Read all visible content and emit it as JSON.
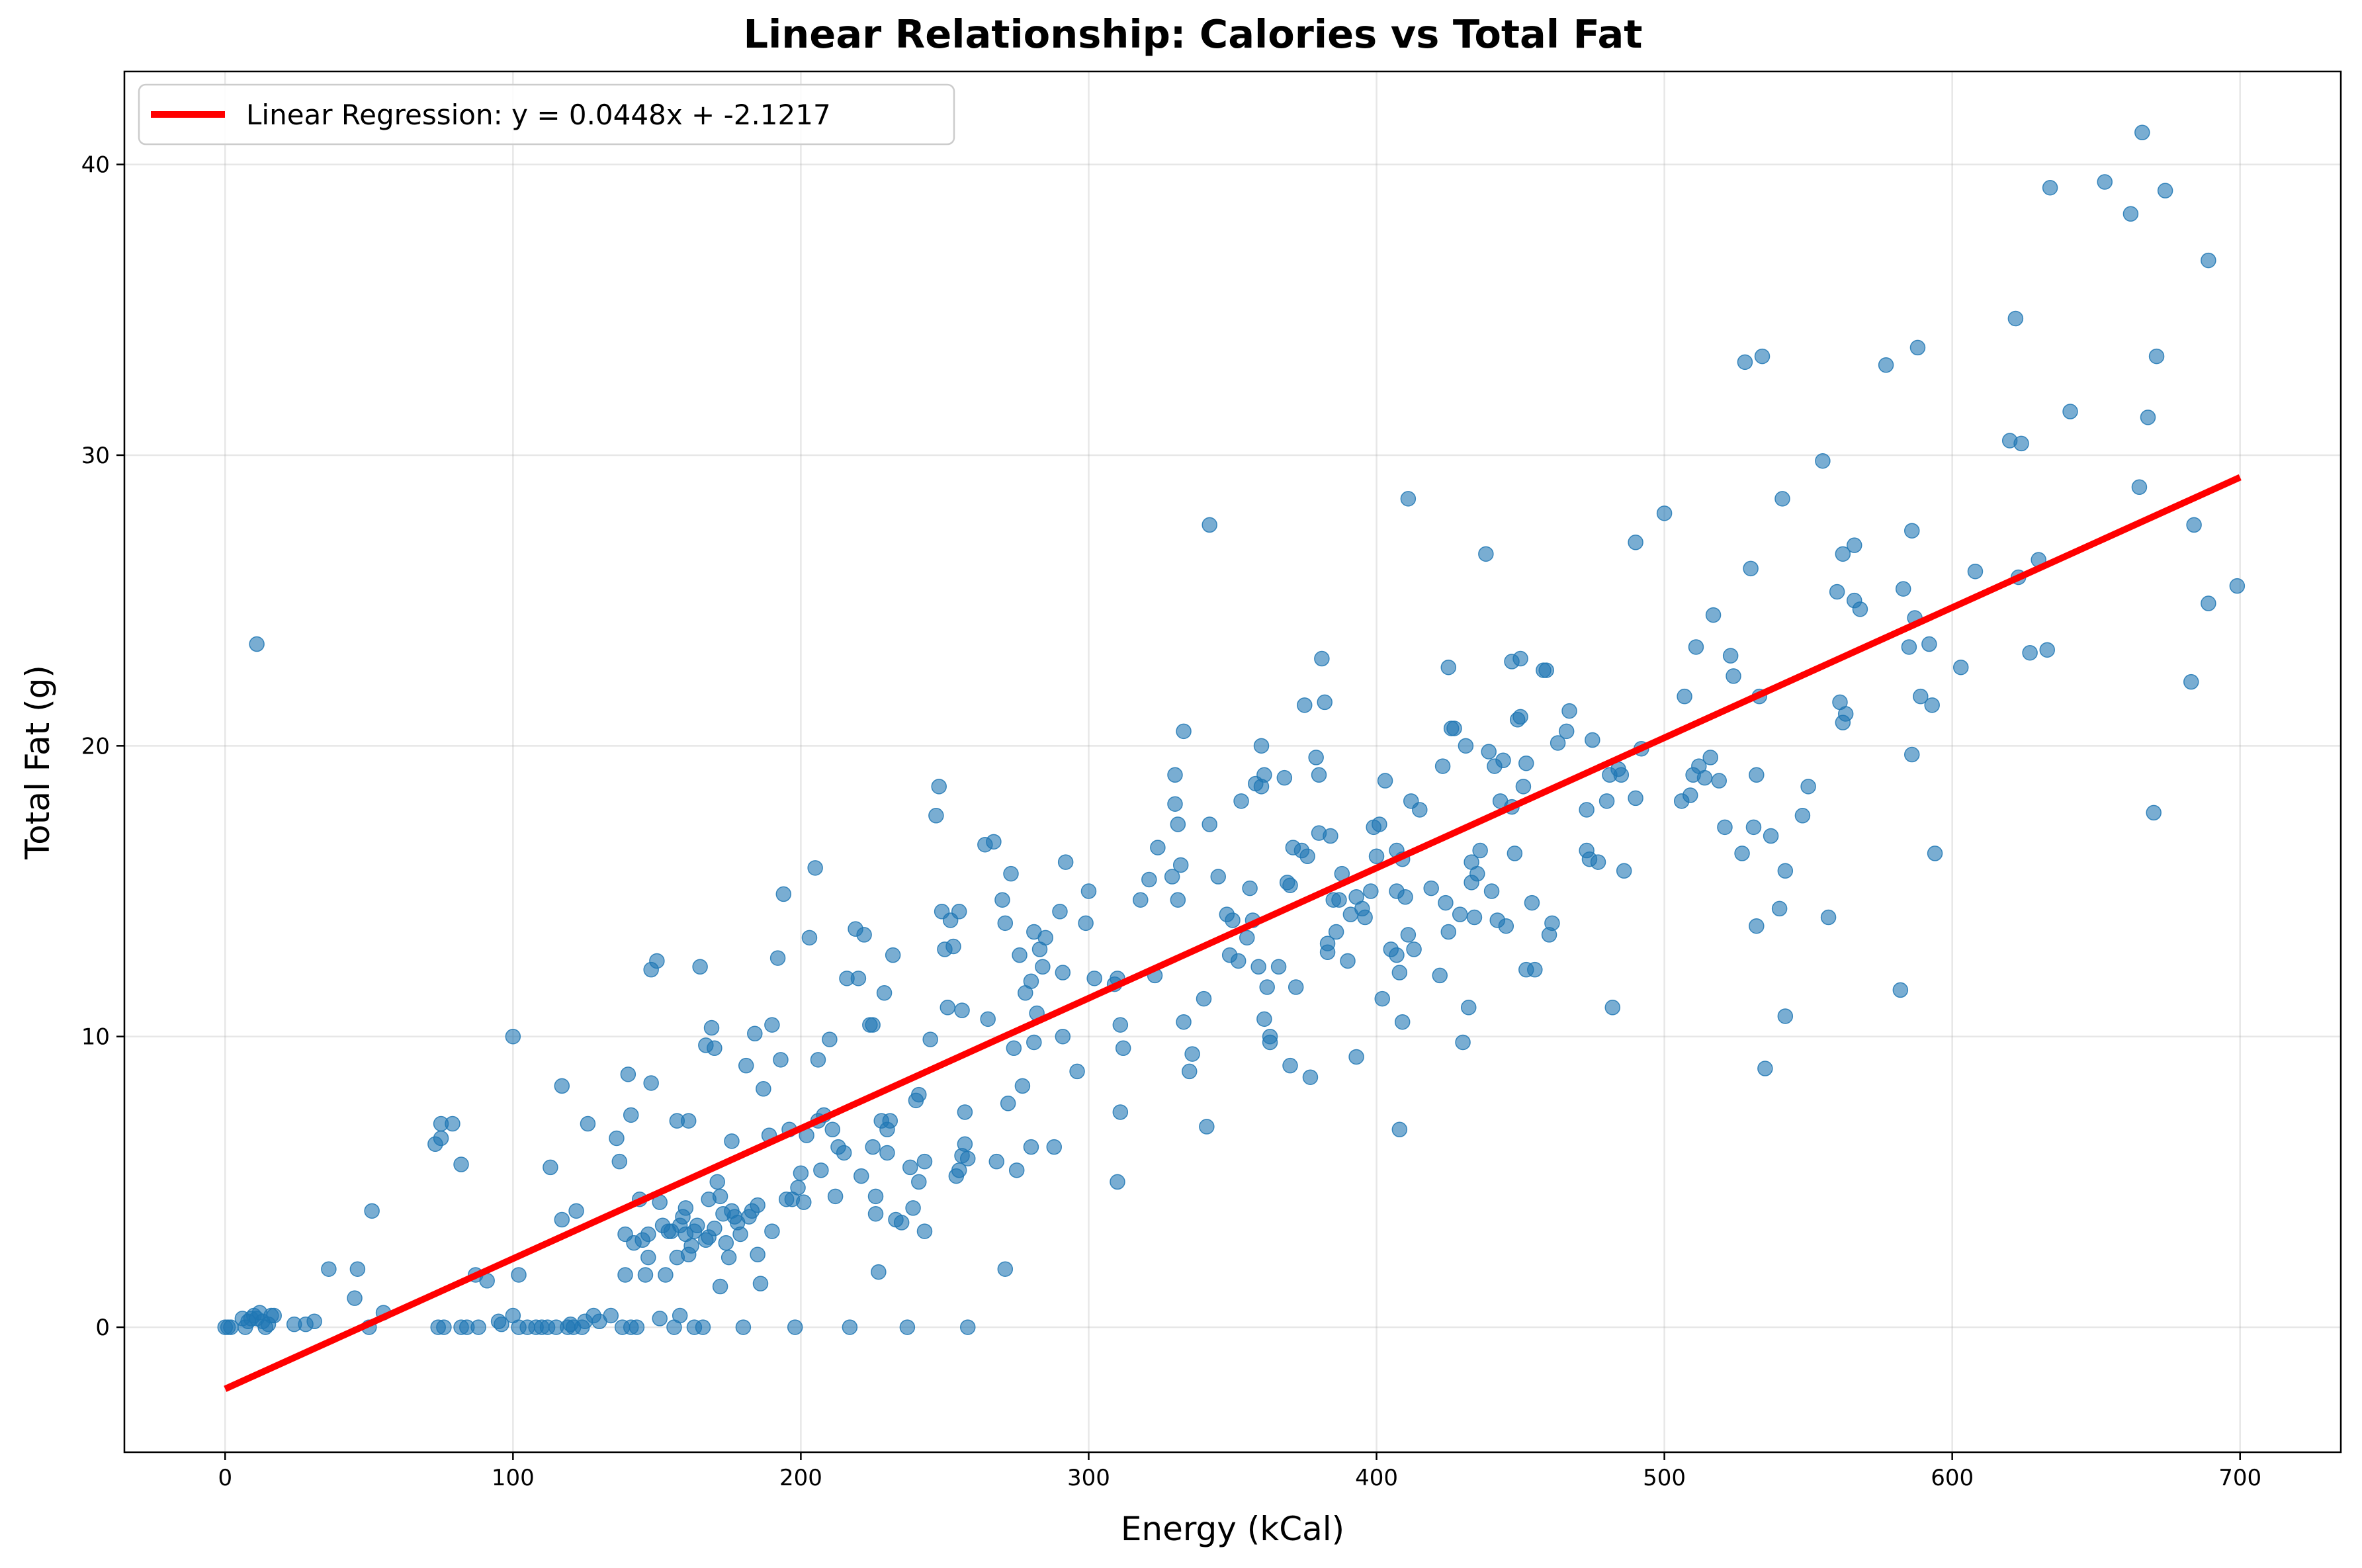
{
  "chart_data": {
    "type": "scatter",
    "title": "Linear Relationship: Calories vs Total Fat",
    "xlabel": "Energy (kCal)",
    "ylabel": "Total Fat (g)",
    "xlim": [
      -35,
      735
    ],
    "ylim": [
      -4.3,
      43.2
    ],
    "xticks": [
      0,
      100,
      200,
      300,
      400,
      500,
      600,
      700
    ],
    "yticks": [
      0,
      10,
      20,
      30,
      40
    ],
    "grid": true,
    "legend_position": "upper-left",
    "colors": {
      "scatter": "#1f77b4",
      "regression": "#ff0000"
    },
    "regression": {
      "label": "Linear Regression: y = 0.0448x + -2.1217",
      "slope": 0.0448,
      "intercept": -2.1217,
      "x_range": [
        0,
        700
      ]
    },
    "points": [
      [
        0,
        0
      ],
      [
        1,
        0
      ],
      [
        2,
        0
      ],
      [
        6,
        0.3
      ],
      [
        7,
        0
      ],
      [
        8,
        0.2
      ],
      [
        9,
        0.3
      ],
      [
        10,
        0.4
      ],
      [
        11,
        0.3
      ],
      [
        12,
        0.5
      ],
      [
        13,
        0.2
      ],
      [
        14,
        0
      ],
      [
        15,
        0.1
      ],
      [
        16,
        0.4
      ],
      [
        17,
        0.4
      ],
      [
        11,
        23.5
      ],
      [
        24,
        0.1
      ],
      [
        28,
        0.1
      ],
      [
        31,
        0.2
      ],
      [
        36,
        2
      ],
      [
        45,
        1
      ],
      [
        46,
        2
      ],
      [
        50,
        0
      ],
      [
        51,
        4
      ],
      [
        55,
        0.5
      ],
      [
        73,
        6.3
      ],
      [
        74,
        0
      ],
      [
        75,
        6.5
      ],
      [
        75,
        7
      ],
      [
        76,
        0
      ],
      [
        79,
        7
      ],
      [
        82,
        5.6
      ],
      [
        82,
        0
      ],
      [
        84,
        0
      ],
      [
        87,
        1.8
      ],
      [
        88,
        0
      ],
      [
        91,
        1.6
      ],
      [
        95,
        0.2
      ],
      [
        96,
        0.1
      ],
      [
        100,
        0.4
      ],
      [
        100,
        10
      ],
      [
        102,
        0
      ],
      [
        102,
        1.8
      ],
      [
        105,
        0
      ],
      [
        108,
        0
      ],
      [
        110,
        0
      ],
      [
        112,
        0
      ],
      [
        113,
        5.5
      ],
      [
        115,
        0
      ],
      [
        117,
        3.7
      ],
      [
        117,
        8.3
      ],
      [
        119,
        0
      ],
      [
        120,
        0.1
      ],
      [
        121,
        0
      ],
      [
        122,
        4
      ],
      [
        124,
        0
      ],
      [
        125,
        0.2
      ],
      [
        126,
        7
      ],
      [
        128,
        0.4
      ],
      [
        130,
        0.2
      ],
      [
        134,
        0.4
      ],
      [
        136,
        6.5
      ],
      [
        137,
        5.7
      ],
      [
        138,
        0
      ],
      [
        139,
        1.8
      ],
      [
        139,
        3.2
      ],
      [
        140,
        8.7
      ],
      [
        141,
        7.3
      ],
      [
        141,
        0
      ],
      [
        142,
        2.9
      ],
      [
        143,
        0
      ],
      [
        144,
        4.4
      ],
      [
        145,
        3
      ],
      [
        146,
        1.8
      ],
      [
        147,
        2.4
      ],
      [
        147,
        3.2
      ],
      [
        148,
        12.3
      ],
      [
        148,
        8.4
      ],
      [
        150,
        12.6
      ],
      [
        151,
        4.3
      ],
      [
        151,
        0.3
      ],
      [
        152,
        3.5
      ],
      [
        153,
        1.8
      ],
      [
        154,
        3.3
      ],
      [
        155,
        3.3
      ],
      [
        156,
        0
      ],
      [
        157,
        7.1
      ],
      [
        157,
        2.4
      ],
      [
        158,
        3.5
      ],
      [
        158,
        0.4
      ],
      [
        159,
        3.8
      ],
      [
        160,
        4.1
      ],
      [
        160,
        3.2
      ],
      [
        161,
        2.5
      ],
      [
        161,
        7.1
      ],
      [
        162,
        2.8
      ],
      [
        163,
        3.3
      ],
      [
        163,
        0
      ],
      [
        164,
        3.5
      ],
      [
        165,
        12.4
      ],
      [
        166,
        0
      ],
      [
        167,
        3
      ],
      [
        167,
        9.7
      ],
      [
        168,
        4.4
      ],
      [
        168,
        3.1
      ],
      [
        169,
        10.3
      ],
      [
        170,
        3.4
      ],
      [
        170,
        9.6
      ],
      [
        171,
        5
      ],
      [
        172,
        4.5
      ],
      [
        172,
        1.4
      ],
      [
        173,
        3.9
      ],
      [
        174,
        2.9
      ],
      [
        175,
        2.4
      ],
      [
        176,
        6.4
      ],
      [
        176,
        4
      ],
      [
        177,
        3.8
      ],
      [
        178,
        3.6
      ],
      [
        179,
        3.2
      ],
      [
        180,
        0
      ],
      [
        181,
        9
      ],
      [
        182,
        3.8
      ],
      [
        183,
        4
      ],
      [
        184,
        10.1
      ],
      [
        185,
        2.5
      ],
      [
        185,
        4.2
      ],
      [
        186,
        1.5
      ],
      [
        187,
        8.2
      ],
      [
        189,
        6.6
      ],
      [
        190,
        10.4
      ],
      [
        190,
        3.3
      ],
      [
        192,
        12.7
      ],
      [
        193,
        9.2
      ],
      [
        194,
        14.9
      ],
      [
        195,
        4.4
      ],
      [
        196,
        6.8
      ],
      [
        197,
        4.4
      ],
      [
        198,
        0
      ],
      [
        199,
        4.8
      ],
      [
        200,
        5.3
      ],
      [
        201,
        4.3
      ],
      [
        202,
        6.6
      ],
      [
        203,
        13.4
      ],
      [
        205,
        15.8
      ],
      [
        206,
        7.1
      ],
      [
        206,
        9.2
      ],
      [
        207,
        5.4
      ],
      [
        208,
        7.3
      ],
      [
        210,
        9.9
      ],
      [
        211,
        6.8
      ],
      [
        212,
        4.5
      ],
      [
        213,
        6.2
      ],
      [
        215,
        6
      ],
      [
        216,
        12
      ],
      [
        217,
        0
      ],
      [
        219,
        13.7
      ],
      [
        220,
        12
      ],
      [
        221,
        5.2
      ],
      [
        222,
        13.5
      ],
      [
        224,
        10.4
      ],
      [
        225,
        10.4
      ],
      [
        225,
        6.2
      ],
      [
        226,
        3.9
      ],
      [
        226,
        4.5
      ],
      [
        227,
        1.9
      ],
      [
        228,
        7.1
      ],
      [
        229,
        11.5
      ],
      [
        230,
        6
      ],
      [
        230,
        6.8
      ],
      [
        231,
        7.1
      ],
      [
        232,
        12.8
      ],
      [
        233,
        3.7
      ],
      [
        235,
        3.6
      ],
      [
        237,
        0
      ],
      [
        238,
        5.5
      ],
      [
        239,
        4.1
      ],
      [
        240,
        7.8
      ],
      [
        241,
        8
      ],
      [
        241,
        5
      ],
      [
        243,
        5.7
      ],
      [
        243,
        3.3
      ],
      [
        245,
        9.9
      ],
      [
        247,
        17.6
      ],
      [
        248,
        18.6
      ],
      [
        249,
        14.3
      ],
      [
        250,
        13
      ],
      [
        251,
        11
      ],
      [
        252,
        14
      ],
      [
        253,
        13.1
      ],
      [
        254,
        5.2
      ],
      [
        255,
        14.3
      ],
      [
        255,
        5.4
      ],
      [
        256,
        5.9
      ],
      [
        256,
        10.9
      ],
      [
        257,
        6.3
      ],
      [
        257,
        7.4
      ],
      [
        258,
        0
      ],
      [
        258,
        5.8
      ],
      [
        264,
        16.6
      ],
      [
        265,
        10.6
      ],
      [
        267,
        16.7
      ],
      [
        268,
        5.7
      ],
      [
        270,
        14.7
      ],
      [
        271,
        13.9
      ],
      [
        271,
        2
      ],
      [
        272,
        7.7
      ],
      [
        273,
        15.6
      ],
      [
        274,
        9.6
      ],
      [
        275,
        5.4
      ],
      [
        276,
        12.8
      ],
      [
        277,
        8.3
      ],
      [
        278,
        11.5
      ],
      [
        280,
        11.9
      ],
      [
        280,
        6.2
      ],
      [
        281,
        13.6
      ],
      [
        281,
        9.8
      ],
      [
        282,
        10.8
      ],
      [
        283,
        13
      ],
      [
        284,
        12.4
      ],
      [
        285,
        13.4
      ],
      [
        288,
        6.2
      ],
      [
        290,
        14.3
      ],
      [
        291,
        10
      ],
      [
        291,
        12.2
      ],
      [
        292,
        16
      ],
      [
        296,
        8.8
      ],
      [
        299,
        13.9
      ],
      [
        300,
        15
      ],
      [
        302,
        12
      ],
      [
        309,
        11.8
      ],
      [
        310,
        12
      ],
      [
        310,
        5
      ],
      [
        311,
        10.4
      ],
      [
        311,
        7.4
      ],
      [
        312,
        9.6
      ],
      [
        318,
        14.7
      ],
      [
        321,
        15.4
      ],
      [
        323,
        12.1
      ],
      [
        324,
        16.5
      ],
      [
        329,
        15.5
      ],
      [
        330,
        19
      ],
      [
        330,
        18
      ],
      [
        331,
        17.3
      ],
      [
        331,
        14.7
      ],
      [
        332,
        15.9
      ],
      [
        333,
        20.5
      ],
      [
        333,
        10.5
      ],
      [
        335,
        8.8
      ],
      [
        336,
        9.4
      ],
      [
        340,
        11.3
      ],
      [
        341,
        6.9
      ],
      [
        342,
        27.6
      ],
      [
        342,
        17.3
      ],
      [
        345,
        15.5
      ],
      [
        348,
        14.2
      ],
      [
        349,
        12.8
      ],
      [
        350,
        14
      ],
      [
        352,
        12.6
      ],
      [
        353,
        18.1
      ],
      [
        355,
        13.4
      ],
      [
        356,
        15.1
      ],
      [
        357,
        14
      ],
      [
        358,
        18.7
      ],
      [
        359,
        12.4
      ],
      [
        360,
        20
      ],
      [
        360,
        18.6
      ],
      [
        361,
        19
      ],
      [
        361,
        10.6
      ],
      [
        362,
        11.7
      ],
      [
        363,
        10
      ],
      [
        363,
        9.8
      ],
      [
        366,
        12.4
      ],
      [
        368,
        18.9
      ],
      [
        369,
        15.3
      ],
      [
        370,
        15.2
      ],
      [
        370,
        9
      ],
      [
        371,
        16.5
      ],
      [
        372,
        11.7
      ],
      [
        374,
        16.4
      ],
      [
        375,
        21.4
      ],
      [
        376,
        16.2
      ],
      [
        377,
        8.6
      ],
      [
        379,
        19.6
      ],
      [
        380,
        17
      ],
      [
        380,
        19
      ],
      [
        381,
        23
      ],
      [
        382,
        21.5
      ],
      [
        383,
        13.2
      ],
      [
        383,
        12.9
      ],
      [
        384,
        16.9
      ],
      [
        385,
        14.7
      ],
      [
        386,
        13.6
      ],
      [
        387,
        14.7
      ],
      [
        388,
        15.6
      ],
      [
        390,
        12.6
      ],
      [
        391,
        14.2
      ],
      [
        393,
        9.3
      ],
      [
        393,
        14.8
      ],
      [
        395,
        14.4
      ],
      [
        396,
        14.1
      ],
      [
        398,
        15
      ],
      [
        399,
        17.2
      ],
      [
        400,
        16.2
      ],
      [
        401,
        17.3
      ],
      [
        402,
        11.3
      ],
      [
        403,
        18.8
      ],
      [
        405,
        13
      ],
      [
        407,
        15
      ],
      [
        407,
        16.4
      ],
      [
        407,
        12.8
      ],
      [
        408,
        6.8
      ],
      [
        408,
        12.2
      ],
      [
        409,
        10.5
      ],
      [
        409,
        16.1
      ],
      [
        410,
        14.8
      ],
      [
        411,
        13.5
      ],
      [
        411,
        28.5
      ],
      [
        412,
        18.1
      ],
      [
        413,
        13
      ],
      [
        415,
        17.8
      ],
      [
        419,
        15.1
      ],
      [
        422,
        12.1
      ],
      [
        423,
        19.3
      ],
      [
        424,
        14.6
      ],
      [
        425,
        22.7
      ],
      [
        425,
        13.6
      ],
      [
        426,
        20.6
      ],
      [
        427,
        20.6
      ],
      [
        429,
        14.2
      ],
      [
        430,
        9.8
      ],
      [
        431,
        20
      ],
      [
        432,
        11
      ],
      [
        433,
        16
      ],
      [
        433,
        15.3
      ],
      [
        434,
        14.1
      ],
      [
        435,
        15.6
      ],
      [
        436,
        16.4
      ],
      [
        438,
        26.6
      ],
      [
        439,
        19.8
      ],
      [
        440,
        15
      ],
      [
        441,
        19.3
      ],
      [
        442,
        14
      ],
      [
        443,
        18.1
      ],
      [
        444,
        19.5
      ],
      [
        445,
        13.8
      ],
      [
        447,
        22.9
      ],
      [
        447,
        17.9
      ],
      [
        448,
        16.3
      ],
      [
        449,
        20.9
      ],
      [
        450,
        23
      ],
      [
        450,
        21
      ],
      [
        451,
        18.6
      ],
      [
        452,
        19.4
      ],
      [
        452,
        12.3
      ],
      [
        454,
        14.6
      ],
      [
        455,
        12.3
      ],
      [
        458,
        22.6
      ],
      [
        459,
        22.6
      ],
      [
        460,
        13.5
      ],
      [
        461,
        13.9
      ],
      [
        463,
        20.1
      ],
      [
        466,
        20.5
      ],
      [
        467,
        21.2
      ],
      [
        473,
        17.8
      ],
      [
        473,
        16.4
      ],
      [
        474,
        16.1
      ],
      [
        475,
        20.2
      ],
      [
        477,
        16
      ],
      [
        480,
        18.1
      ],
      [
        481,
        19
      ],
      [
        482,
        11
      ],
      [
        484,
        19.2
      ],
      [
        485,
        19
      ],
      [
        486,
        15.7
      ],
      [
        490,
        18.2
      ],
      [
        490,
        27
      ],
      [
        492,
        19.9
      ],
      [
        500,
        28
      ],
      [
        506,
        18.1
      ],
      [
        507,
        21.7
      ],
      [
        509,
        18.3
      ],
      [
        510,
        19
      ],
      [
        511,
        23.4
      ],
      [
        512,
        19.3
      ],
      [
        514,
        18.9
      ],
      [
        516,
        19.6
      ],
      [
        517,
        24.5
      ],
      [
        519,
        18.8
      ],
      [
        521,
        17.2
      ],
      [
        523,
        23.1
      ],
      [
        524,
        22.4
      ],
      [
        527,
        16.3
      ],
      [
        528,
        33.2
      ],
      [
        530,
        26.1
      ],
      [
        531,
        17.2
      ],
      [
        532,
        13.8
      ],
      [
        532,
        19
      ],
      [
        533,
        21.7
      ],
      [
        534,
        33.4
      ],
      [
        535,
        8.9
      ],
      [
        537,
        16.9
      ],
      [
        540,
        14.4
      ],
      [
        541,
        28.5
      ],
      [
        542,
        15.7
      ],
      [
        542,
        10.7
      ],
      [
        548,
        17.6
      ],
      [
        550,
        18.6
      ],
      [
        555,
        29.8
      ],
      [
        557,
        14.1
      ],
      [
        560,
        25.3
      ],
      [
        561,
        21.5
      ],
      [
        562,
        26.6
      ],
      [
        562,
        20.8
      ],
      [
        563,
        21.1
      ],
      [
        566,
        26.9
      ],
      [
        566,
        25
      ],
      [
        568,
        24.7
      ],
      [
        577,
        33.1
      ],
      [
        582,
        11.6
      ],
      [
        583,
        25.4
      ],
      [
        585,
        23.4
      ],
      [
        586,
        27.4
      ],
      [
        586,
        19.7
      ],
      [
        587,
        24.4
      ],
      [
        588,
        33.7
      ],
      [
        589,
        21.7
      ],
      [
        592,
        23.5
      ],
      [
        593,
        21.4
      ],
      [
        594,
        16.3
      ],
      [
        603,
        22.7
      ],
      [
        608,
        26
      ],
      [
        620,
        30.5
      ],
      [
        622,
        34.7
      ],
      [
        623,
        25.8
      ],
      [
        624,
        30.4
      ],
      [
        627,
        23.2
      ],
      [
        630,
        26.4
      ],
      [
        633,
        23.3
      ],
      [
        634,
        39.2
      ],
      [
        641,
        31.5
      ],
      [
        653,
        39.4
      ],
      [
        662,
        38.3
      ],
      [
        665,
        28.9
      ],
      [
        666,
        41.1
      ],
      [
        668,
        31.3
      ],
      [
        670,
        17.7
      ],
      [
        671,
        33.4
      ],
      [
        674,
        39.1
      ],
      [
        683,
        22.2
      ],
      [
        684,
        27.6
      ],
      [
        689,
        36.7
      ],
      [
        689,
        24.9
      ],
      [
        699,
        25.5
      ]
    ]
  }
}
